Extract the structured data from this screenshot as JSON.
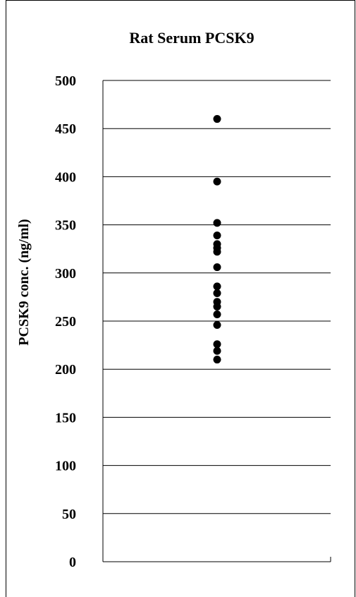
{
  "chart_data": {
    "type": "scatter",
    "title": "Rat Serum PCSK9",
    "xlabel": "",
    "ylabel": "PCSK9 conc. (ng/ml)",
    "ylim": [
      0,
      500
    ],
    "yticks": [
      0,
      50,
      100,
      150,
      200,
      250,
      300,
      350,
      400,
      450,
      500
    ],
    "grid": true,
    "series": [
      {
        "values": [
          460,
          395,
          352,
          339,
          330,
          326,
          322,
          306,
          286,
          279,
          270,
          265,
          257,
          246,
          226,
          219,
          210
        ]
      }
    ],
    "colors": {
      "marker": "#000000",
      "grid": "#000000"
    }
  }
}
